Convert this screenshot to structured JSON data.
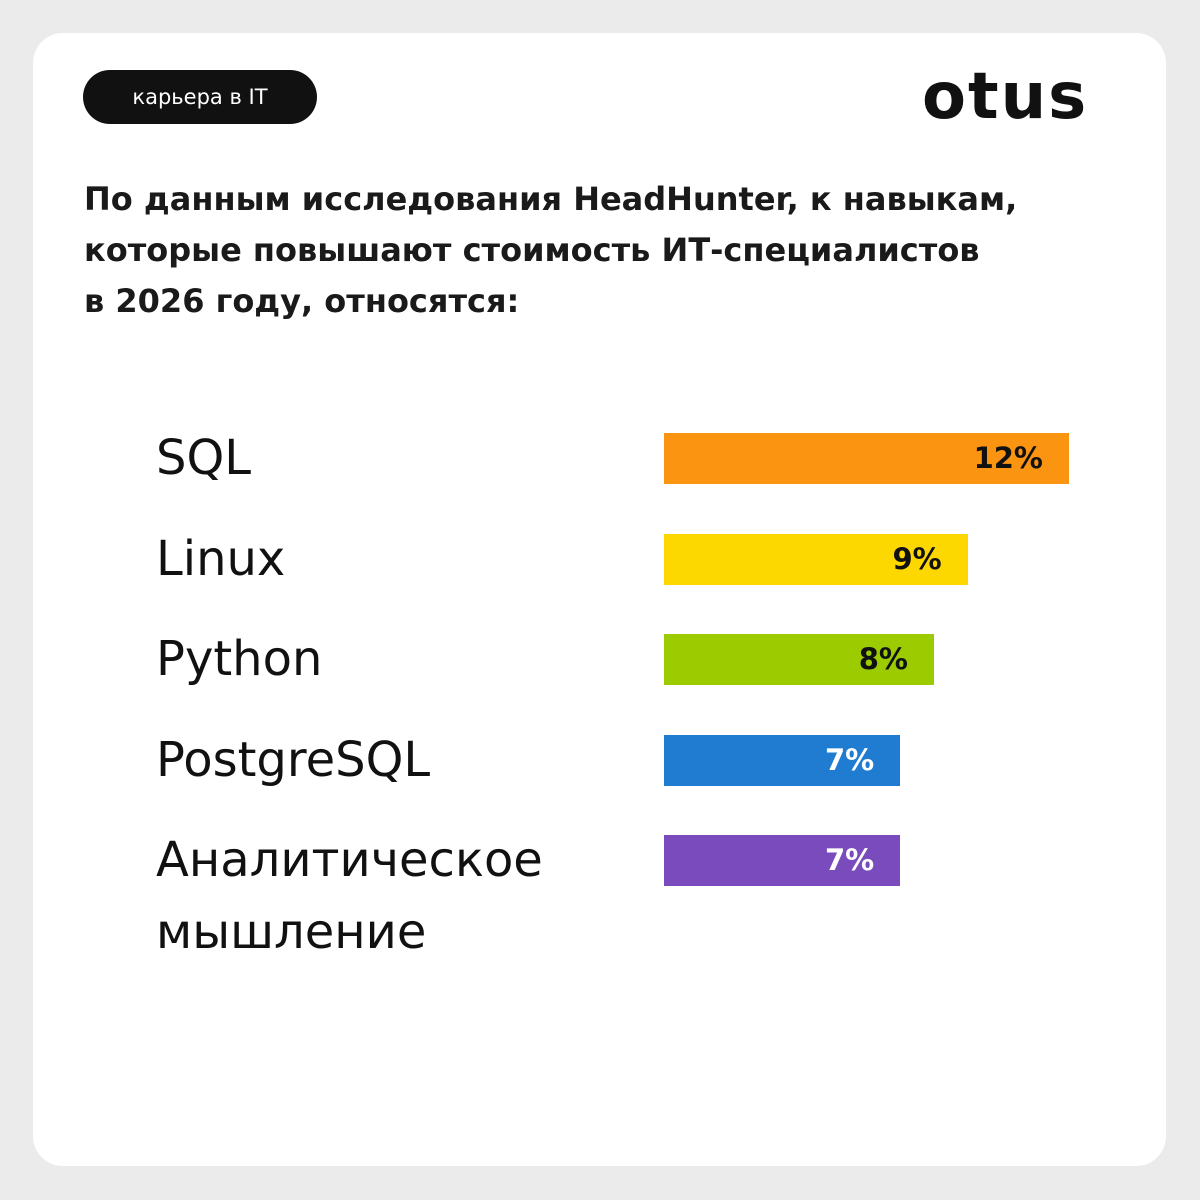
{
  "tag": "карьера в IT",
  "logo": "otus",
  "chart_data": {
    "type": "bar",
    "orientation": "horizontal",
    "title": "По данным исследования HeadHunter, к навыкам,\nкоторые повышают стоимость ИТ-специалистов\nв 2026 году, относятся:",
    "categories": [
      "SQL",
      "Linux",
      "Python",
      "PostgreSQL",
      "Аналитическое\nмышление"
    ],
    "values": [
      12,
      9,
      8,
      7,
      7
    ],
    "value_labels": [
      "12%",
      "9%",
      "8%",
      "7%",
      "7%"
    ],
    "colors": [
      "#fb9410",
      "#fdd800",
      "#9ccb00",
      "#1f7cd0",
      "#7a4bbd"
    ]
  }
}
